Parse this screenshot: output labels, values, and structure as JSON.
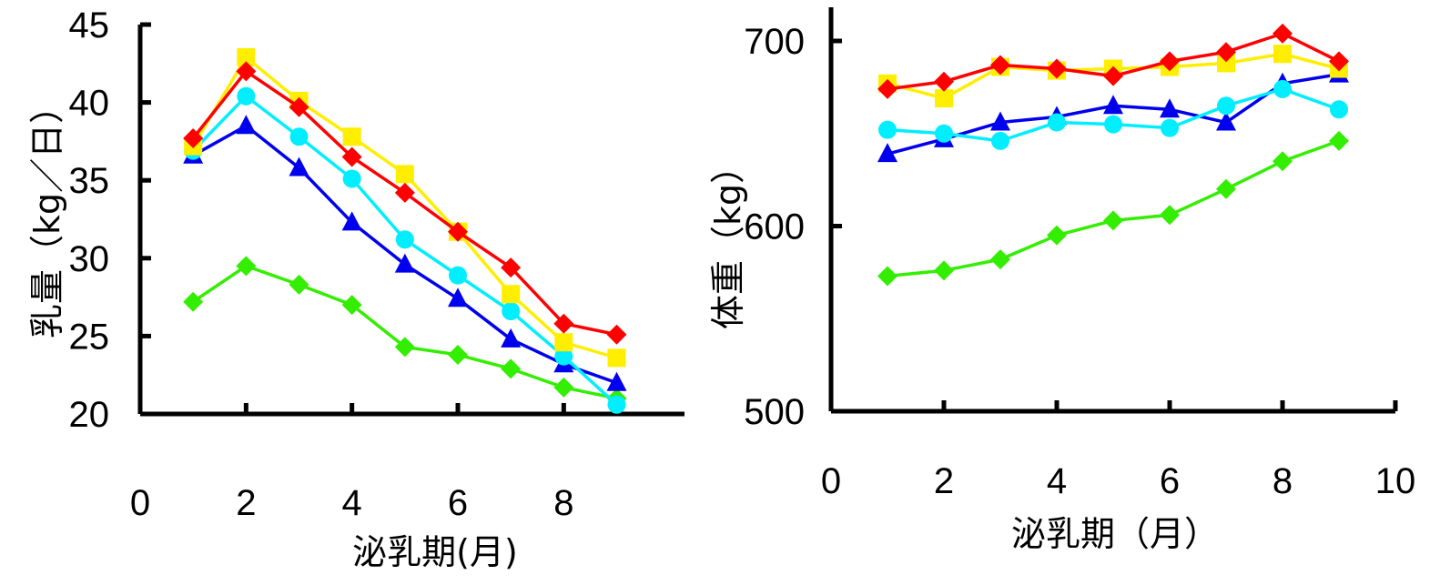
{
  "chart_data": [
    {
      "type": "line",
      "title": "",
      "xlabel": "泌乳期(月)",
      "ylabel": "乳量（kg／日）",
      "xlim": [
        0,
        9
      ],
      "ylim": [
        20,
        45
      ],
      "xticks": [
        0,
        2,
        4,
        6,
        8
      ],
      "yticks": [
        20,
        25,
        30,
        35,
        40,
        45
      ],
      "grid": false,
      "x": [
        1,
        2,
        3,
        4,
        5,
        6,
        7,
        8,
        9
      ],
      "series": [
        {
          "color": "#33ee00",
          "marker": "diamond",
          "values": [
            27.2,
            29.5,
            28.3,
            27.0,
            24.3,
            23.8,
            22.9,
            21.7,
            21.0
          ]
        },
        {
          "color": "#0000ee",
          "marker": "triangle",
          "values": [
            36.6,
            38.5,
            35.8,
            32.3,
            29.6,
            27.4,
            24.8,
            23.2,
            22.0
          ]
        },
        {
          "color": "#00eeff",
          "marker": "circle",
          "values": [
            36.9,
            40.4,
            37.8,
            35.1,
            31.2,
            28.9,
            26.6,
            23.7,
            20.6
          ]
        },
        {
          "color": "#ffee00",
          "marker": "square",
          "values": [
            37.2,
            42.9,
            40.1,
            37.8,
            35.4,
            31.7,
            27.7,
            24.6,
            23.6
          ]
        },
        {
          "color": "#ff0000",
          "marker": "diamond",
          "values": [
            37.7,
            42.0,
            39.7,
            36.5,
            34.2,
            31.7,
            29.4,
            25.8,
            25.1
          ]
        }
      ]
    },
    {
      "type": "line",
      "title": "",
      "xlabel": "泌乳期（月）",
      "ylabel": "体重（kg）",
      "xlim": [
        0,
        10
      ],
      "ylim": [
        500,
        720
      ],
      "xticks": [
        0,
        2,
        4,
        6,
        8,
        10
      ],
      "yticks": [
        500,
        600,
        700
      ],
      "grid": false,
      "x": [
        1,
        2,
        3,
        4,
        5,
        6,
        7,
        8,
        9
      ],
      "series": [
        {
          "color": "#33ee00",
          "marker": "diamond",
          "values": [
            573,
            576,
            582,
            595,
            603,
            606,
            620,
            635,
            646
          ]
        },
        {
          "color": "#0000ee",
          "marker": "triangle",
          "values": [
            639,
            647,
            656,
            659,
            665,
            663,
            656,
            677,
            682
          ]
        },
        {
          "color": "#00eeff",
          "marker": "circle",
          "values": [
            652,
            650,
            646,
            656,
            655,
            653,
            665,
            674,
            663
          ]
        },
        {
          "color": "#ffee00",
          "marker": "square",
          "values": [
            677,
            669,
            686,
            684,
            685,
            686,
            688,
            693,
            685
          ]
        },
        {
          "color": "#ff0000",
          "marker": "diamond",
          "values": [
            674,
            678,
            687,
            685,
            681,
            689,
            694,
            704,
            689
          ]
        }
      ]
    }
  ]
}
